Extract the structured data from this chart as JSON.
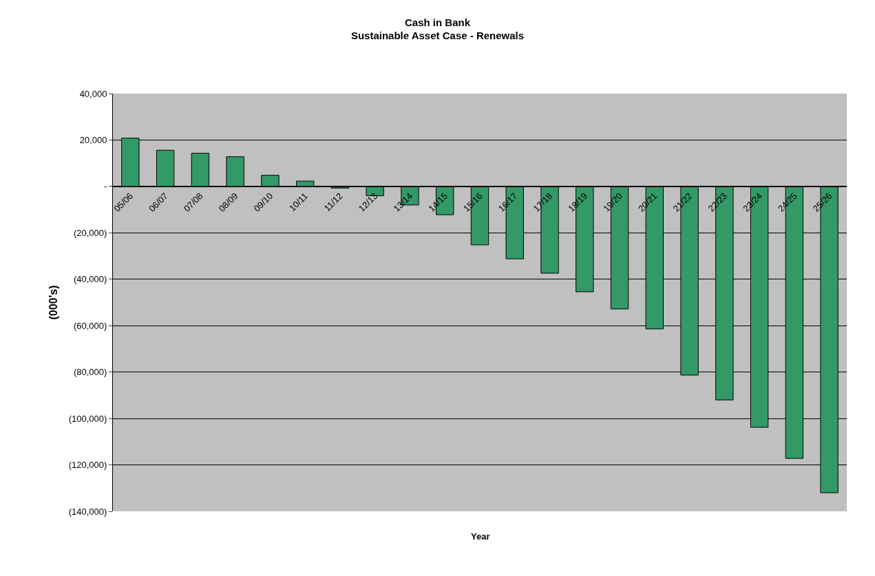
{
  "chart_data": {
    "type": "bar",
    "title": "Cash in Bank",
    "subtitle": "Sustainable Asset Case - Renewals",
    "xlabel": "Year",
    "ylabel": "(000's)",
    "categories": [
      "05/06",
      "06/07",
      "07/08",
      "08/09",
      "09/10",
      "10/11",
      "11/12",
      "12/13",
      "13/14",
      "14/15",
      "15/16",
      "16/17",
      "17/18",
      "18/19",
      "19/20",
      "20/21",
      "21/22",
      "22/23",
      "23/24",
      "24/25",
      "25/26"
    ],
    "values": [
      20800,
      15600,
      14300,
      12800,
      4800,
      2300,
      -700,
      -4000,
      -8000,
      -12200,
      -25200,
      -31200,
      -37400,
      -45400,
      -52800,
      -61400,
      -81300,
      -92000,
      -103800,
      -117200,
      -132000
    ],
    "color": "#339966",
    "ylim": [
      -140000,
      40000
    ],
    "yticks": [
      {
        "value": 40000,
        "label": "40,000"
      },
      {
        "value": 20000,
        "label": "20,000"
      },
      {
        "value": 0,
        "label": "-"
      },
      {
        "value": -20000,
        "label": "(20,000)"
      },
      {
        "value": -40000,
        "label": "(40,000)"
      },
      {
        "value": -60000,
        "label": "(60,000)"
      },
      {
        "value": -80000,
        "label": "(80,000)"
      },
      {
        "value": -100000,
        "label": "(100,000)"
      },
      {
        "value": -120000,
        "label": "(120,000)"
      },
      {
        "value": -140000,
        "label": "(140,000)"
      }
    ],
    "grid": "y",
    "legend": false
  }
}
